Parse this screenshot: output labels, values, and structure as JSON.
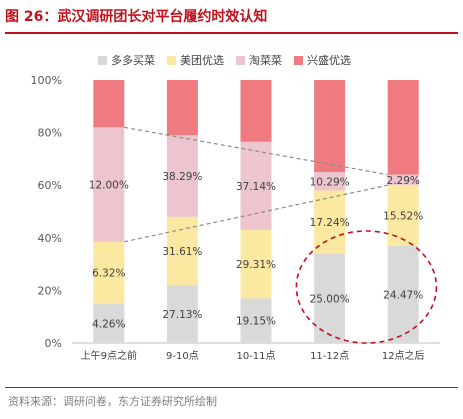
{
  "header": {
    "title": "图 26：武汉调研团长对平台履约时效认知"
  },
  "footer": {
    "source": "资料来源：调研问卷，东方证券研究所绘制"
  },
  "chart_data": {
    "type": "bar",
    "stacked": true,
    "categories": [
      "上午9点之前",
      "9-10点",
      "10-11点",
      "11-12点",
      "12点之后"
    ],
    "series": [
      {
        "name": "多多买菜",
        "color": "#d9d9d9",
        "values": [
          15.0,
          22.0,
          17.0,
          34.0,
          37.0
        ],
        "labels": [
          "4.26%",
          "27.13%",
          "19.15%",
          "25.00%",
          "24.47%"
        ]
      },
      {
        "name": "美团优选",
        "color": "#fbe9a1",
        "values": [
          23.5,
          26.0,
          26.0,
          24.0,
          23.0
        ],
        "labels": [
          "6.32%",
          "31.61%",
          "29.31%",
          "17.24%",
          "15.52%"
        ]
      },
      {
        "name": "淘菜菜",
        "color": "#ecc5ce",
        "values": [
          43.5,
          31.0,
          33.5,
          7.0,
          4.0
        ],
        "labels": [
          "12.00%",
          "38.29%",
          "37.14%",
          "10.29%",
          "2.29%"
        ]
      },
      {
        "name": "兴盛优选",
        "color": "#ef7b80",
        "values": [
          18.0,
          21.0,
          23.5,
          35.0,
          36.0
        ],
        "labels": []
      }
    ],
    "yticks": [
      "0%",
      "20%",
      "40%",
      "60%",
      "80%",
      "100%"
    ],
    "ylim": [
      0,
      100
    ],
    "legend": "top",
    "grid": false
  }
}
